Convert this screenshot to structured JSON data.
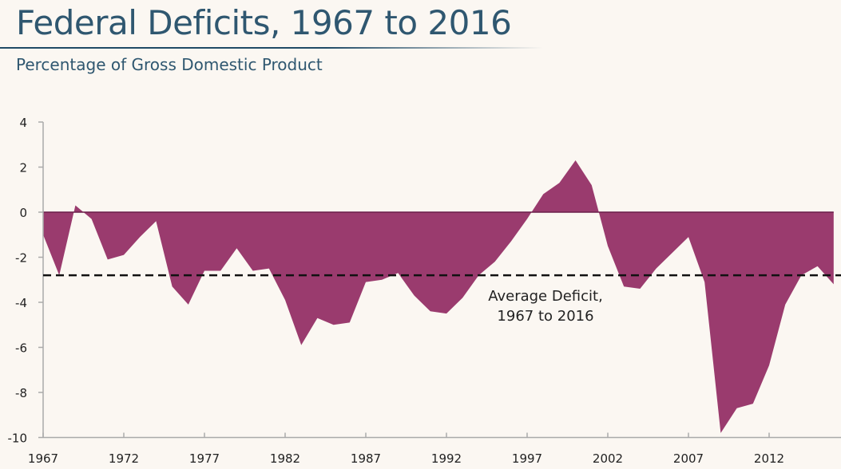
{
  "header": {
    "title": "Federal Deficits, 1967 to 2016",
    "subtitle": "Percentage of Gross Domestic Product"
  },
  "chart_data": {
    "type": "area",
    "title": "Federal Deficits, 1967 to 2016",
    "subtitle": "Percentage of Gross Domestic Product",
    "xlabel": "",
    "ylabel": "",
    "xlim": [
      1967,
      2016
    ],
    "ylim": [
      -10,
      4
    ],
    "x_ticks": [
      "1967",
      "1972",
      "1977",
      "1982",
      "1987",
      "1992",
      "1997",
      "2002",
      "2007",
      "2012"
    ],
    "y_ticks": [
      "4",
      "2",
      "0",
      "-2",
      "-4",
      "-6",
      "-8",
      "-10"
    ],
    "fill_color": "#9a3b6e",
    "x": [
      1967,
      1968,
      1969,
      1970,
      1971,
      1972,
      1973,
      1974,
      1975,
      1976,
      1977,
      1978,
      1979,
      1980,
      1981,
      1982,
      1983,
      1984,
      1985,
      1986,
      1987,
      1988,
      1989,
      1990,
      1991,
      1992,
      1993,
      1994,
      1995,
      1996,
      1997,
      1998,
      1999,
      2000,
      2001,
      2002,
      2003,
      2004,
      2005,
      2006,
      2007,
      2008,
      2009,
      2010,
      2011,
      2012,
      2013,
      2014,
      2015,
      2016
    ],
    "values": [
      -1.0,
      -2.8,
      0.3,
      -0.3,
      -2.1,
      -1.9,
      -1.1,
      -0.4,
      -3.3,
      -4.1,
      -2.6,
      -2.6,
      -1.6,
      -2.6,
      -2.5,
      -3.9,
      -5.9,
      -4.7,
      -5.0,
      -4.9,
      -3.1,
      -3.0,
      -2.7,
      -3.7,
      -4.4,
      -4.5,
      -3.8,
      -2.8,
      -2.2,
      -1.3,
      -0.3,
      0.8,
      1.3,
      2.3,
      1.2,
      -1.5,
      -3.3,
      -3.4,
      -2.5,
      -1.8,
      -1.1,
      -3.1,
      -9.8,
      -8.7,
      -8.5,
      -6.8,
      -4.1,
      -2.8,
      -2.4,
      -3.2
    ],
    "average": {
      "value": -2.8,
      "label_line1": "Average Deficit,",
      "label_line2": "1967 to 2016"
    },
    "grid": false
  }
}
